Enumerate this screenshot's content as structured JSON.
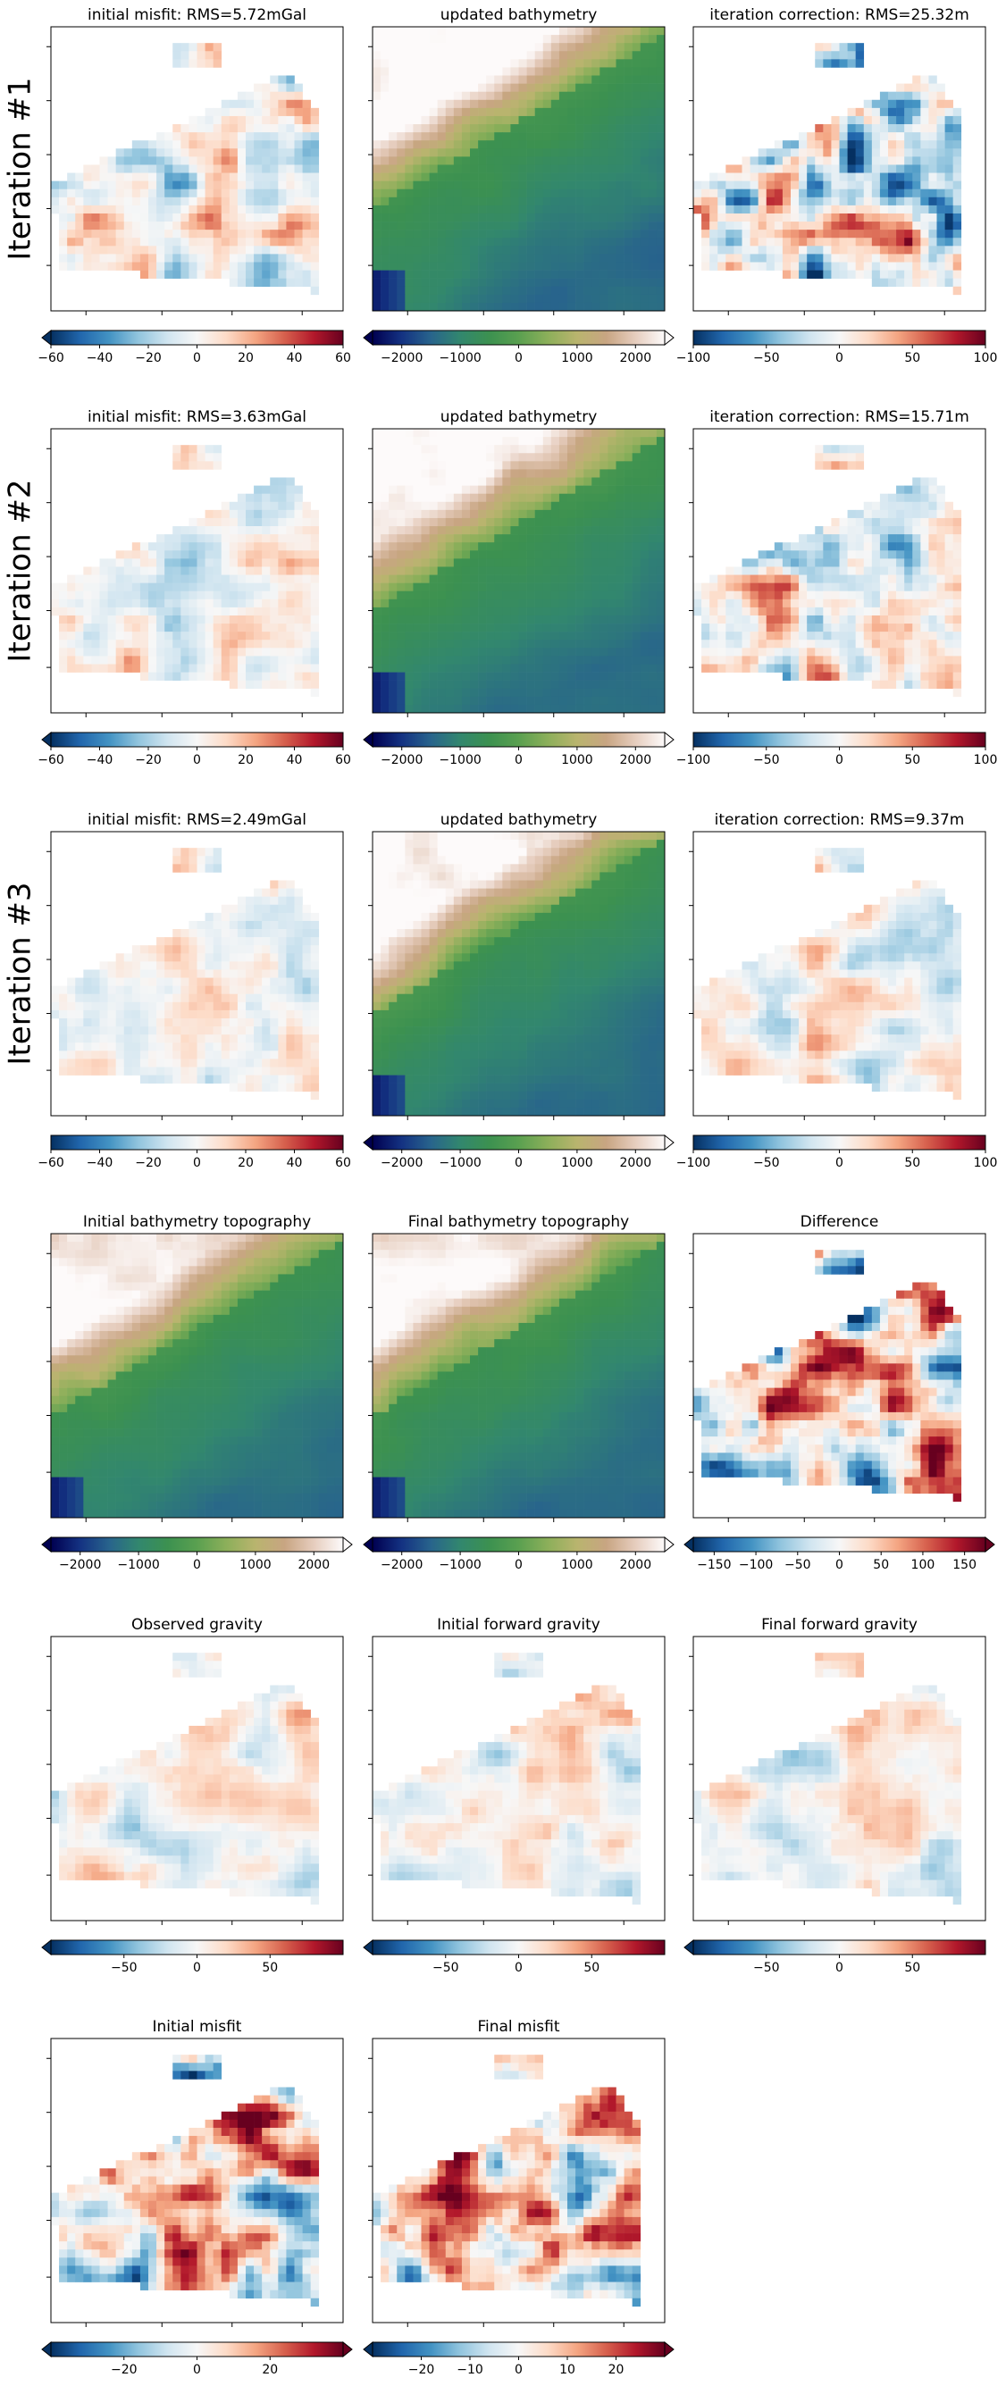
{
  "chart_data": [
    {
      "type": "heatmap",
      "row": "Iteration #1",
      "title": "initial misfit: RMS=5.72mGal",
      "colormap": "RdBu_r",
      "colorbar": {
        "ticks": [
          -60,
          -40,
          -20,
          0,
          20,
          40,
          60
        ],
        "range": [
          -60,
          60
        ],
        "extend": "min"
      },
      "field": "misfit",
      "rms_mGal": 5.72
    },
    {
      "type": "heatmap",
      "row": "Iteration #1",
      "title": "updated bathymetry",
      "colormap": "gist_earth",
      "colorbar": {
        "ticks": [
          -2000,
          -1000,
          0,
          1000,
          2000
        ],
        "range": [
          -2500,
          2500
        ],
        "extend": "both"
      },
      "field": "bathymetry"
    },
    {
      "type": "heatmap",
      "row": "Iteration #1",
      "title": "iteration correction: RMS=25.32m",
      "colormap": "RdBu_r",
      "colorbar": {
        "ticks": [
          -100,
          -50,
          0,
          50,
          100
        ],
        "range": [
          -100,
          100
        ],
        "extend": "neither"
      },
      "field": "correction",
      "rms_m": 25.32
    },
    {
      "type": "heatmap",
      "row": "Iteration #2",
      "title": "initial misfit: RMS=3.63mGal",
      "colormap": "RdBu_r",
      "colorbar": {
        "ticks": [
          -60,
          -40,
          -20,
          0,
          20,
          40,
          60
        ],
        "range": [
          -60,
          60
        ],
        "extend": "min"
      },
      "field": "misfit",
      "rms_mGal": 3.63
    },
    {
      "type": "heatmap",
      "row": "Iteration #2",
      "title": "updated bathymetry",
      "colormap": "gist_earth",
      "colorbar": {
        "ticks": [
          -2000,
          -1000,
          0,
          1000,
          2000
        ],
        "range": [
          -2500,
          2500
        ],
        "extend": "both"
      },
      "field": "bathymetry"
    },
    {
      "type": "heatmap",
      "row": "Iteration #2",
      "title": "iteration correction: RMS=15.71m",
      "colormap": "RdBu_r",
      "colorbar": {
        "ticks": [
          -100,
          -50,
          0,
          50,
          100
        ],
        "range": [
          -100,
          100
        ],
        "extend": "neither"
      },
      "field": "correction",
      "rms_m": 15.71
    },
    {
      "type": "heatmap",
      "row": "Iteration #3",
      "title": "initial misfit: RMS=2.49mGal",
      "colormap": "RdBu_r",
      "colorbar": {
        "ticks": [
          -60,
          -40,
          -20,
          0,
          20,
          40,
          60
        ],
        "range": [
          -60,
          60
        ],
        "extend": "neither"
      },
      "field": "misfit",
      "rms_mGal": 2.49
    },
    {
      "type": "heatmap",
      "row": "Iteration #3",
      "title": "updated bathymetry",
      "colormap": "gist_earth",
      "colorbar": {
        "ticks": [
          -2000,
          -1000,
          0,
          1000,
          2000
        ],
        "range": [
          -2500,
          2500
        ],
        "extend": "both"
      },
      "field": "bathymetry"
    },
    {
      "type": "heatmap",
      "row": "Iteration #3",
      "title": "iteration correction: RMS=9.37m",
      "colormap": "RdBu_r",
      "colorbar": {
        "ticks": [
          -100,
          -50,
          0,
          50,
          100
        ],
        "range": [
          -100,
          100
        ],
        "extend": "neither"
      },
      "field": "correction",
      "rms_m": 9.37
    },
    {
      "type": "heatmap",
      "row": "",
      "title": "Initial bathymetry topography",
      "colormap": "gist_earth",
      "colorbar": {
        "ticks": [
          -2000,
          -1000,
          0,
          1000,
          2000
        ],
        "range": [
          -2500,
          2500
        ],
        "extend": "both"
      },
      "field": "bathymetry"
    },
    {
      "type": "heatmap",
      "row": "",
      "title": "Final bathymetry topography",
      "colormap": "gist_earth",
      "colorbar": {
        "ticks": [
          -2000,
          -1000,
          0,
          1000,
          2000
        ],
        "range": [
          -2500,
          2500
        ],
        "extend": "both"
      },
      "field": "bathymetry"
    },
    {
      "type": "heatmap",
      "row": "",
      "title": "Difference",
      "colormap": "RdBu_r",
      "colorbar": {
        "ticks": [
          -150,
          -100,
          -50,
          0,
          50,
          100,
          150
        ],
        "range": [
          -175,
          175
        ],
        "extend": "both"
      },
      "field": "difference"
    },
    {
      "type": "heatmap",
      "row": "",
      "title": "Observed gravity",
      "colormap": "RdBu_r",
      "colorbar": {
        "ticks": [
          -50,
          0,
          50
        ],
        "range": [
          -100,
          100
        ],
        "extend": "min"
      },
      "field": "gravity"
    },
    {
      "type": "heatmap",
      "row": "",
      "title": "Initial forward gravity",
      "colormap": "RdBu_r",
      "colorbar": {
        "ticks": [
          -50,
          0,
          50
        ],
        "range": [
          -100,
          100
        ],
        "extend": "min"
      },
      "field": "gravity"
    },
    {
      "type": "heatmap",
      "row": "",
      "title": "Final forward gravity",
      "colormap": "RdBu_r",
      "colorbar": {
        "ticks": [
          -50,
          0,
          50
        ],
        "range": [
          -100,
          100
        ],
        "extend": "min"
      },
      "field": "gravity"
    },
    {
      "type": "heatmap",
      "row": "",
      "title": "Initial misfit",
      "colormap": "RdBu_r",
      "colorbar": {
        "ticks": [
          -20,
          0,
          20
        ],
        "range": [
          -40,
          40
        ],
        "extend": "both"
      },
      "field": "misfit_large"
    },
    {
      "type": "heatmap",
      "row": "",
      "title": "Final misfit",
      "colormap": "RdBu_r",
      "colorbar": {
        "ticks": [
          -20,
          -10,
          0,
          10,
          20
        ],
        "range": [
          -30,
          30
        ],
        "extend": "both"
      },
      "field": "misfit_large"
    }
  ],
  "row_labels": [
    "Iteration #1",
    "Iteration #2",
    "Iteration #3"
  ],
  "colors": {
    "axis": "#000000",
    "background": "#ffffff",
    "nan": "#ffffff"
  }
}
